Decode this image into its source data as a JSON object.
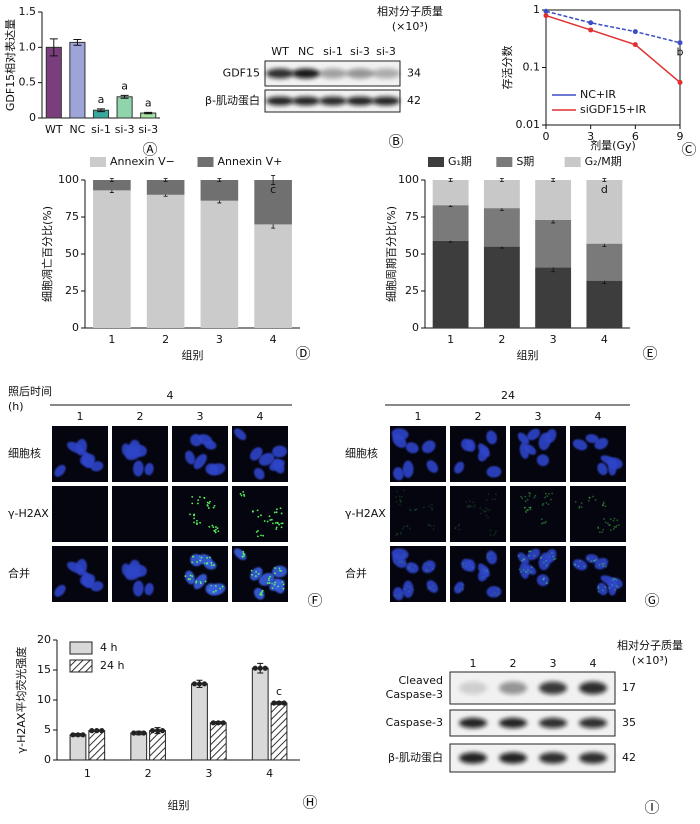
{
  "chart_data": [
    {
      "type": "bar",
      "panel_label": "Ⓐ",
      "y_label": "GDF15相对表达量",
      "categories": [
        "WT",
        "NC",
        "si-1",
        "si-3",
        "si-3"
      ],
      "values": [
        1.0,
        1.07,
        0.11,
        0.3,
        0.07
      ],
      "errors": [
        0.12,
        0.04,
        0.02,
        0.02,
        0.01
      ],
      "colors": [
        "#7a3e7d",
        "#9ea3d8",
        "#3aa79f",
        "#8fd4aa",
        "#a6e2a2"
      ],
      "ylim": [
        0,
        1.5
      ],
      "yticks": [
        0,
        0.5,
        {
          "value": 1,
          "label": "1.0"
        },
        1.5
      ],
      "annotations": [
        "a",
        "a",
        "a"
      ]
    },
    {
      "type": "line",
      "panel_label": "Ⓒ",
      "y_label": "存活分数",
      "x_label": "剂量(Gy)",
      "x": [
        0,
        3,
        6,
        9
      ],
      "series": [
        {
          "name": "NC+IR",
          "color": "#3b4fc4",
          "line_style": "dashed",
          "values": [
            0.95,
            0.6,
            0.42,
            0.27
          ]
        },
        {
          "name": "siGDF15+IR",
          "color": "#e03030",
          "line_style": "solid",
          "values": [
            0.8,
            0.45,
            0.25,
            0.055
          ]
        }
      ],
      "xlim": [
        0,
        9
      ],
      "xticks": [
        0,
        3,
        6,
        9
      ],
      "ylim": [
        0.01,
        1
      ],
      "yticks": [
        0.01,
        0.1,
        1
      ],
      "log_y": true,
      "legend": "lower right",
      "annotations": [
        "b"
      ]
    },
    {
      "type": "stacked_bar",
      "panel_label": "Ⓓ",
      "y_label": "细胞凋亡百分比(%)",
      "x_label": "组别",
      "categories": [
        "1",
        "2",
        "3",
        "4"
      ],
      "series": [
        {
          "name": "Annexin V−",
          "color": "#cbcbcb",
          "values": [
            93,
            90,
            86,
            70
          ],
          "errors": [
            1.5,
            1,
            1.5,
            2.5
          ]
        },
        {
          "name": "Annexin V+",
          "color": "#707070",
          "values": [
            7,
            10,
            14,
            30
          ],
          "errors": [
            1,
            1,
            1,
            3
          ]
        }
      ],
      "ylim": [
        0,
        100
      ],
      "yticks": [
        0,
        25,
        50,
        75,
        100
      ],
      "legend": "top",
      "annotations": [
        "c"
      ]
    },
    {
      "type": "stacked_bar",
      "panel_label": "Ⓔ",
      "y_label": "细胞周期百分比(%)",
      "x_label": "组别",
      "categories": [
        "1",
        "2",
        "3",
        "4"
      ],
      "series": [
        {
          "name": "G₁期",
          "color": "#3d3d3d",
          "values": [
            59,
            55,
            41,
            32
          ],
          "errors": [
            1,
            1,
            3,
            2
          ]
        },
        {
          "name": "S期",
          "color": "#7a7a7a",
          "values": [
            24,
            26,
            32,
            25
          ],
          "errors": [
            1,
            1.5,
            2,
            2
          ]
        },
        {
          "name": "G₂/M期",
          "color": "#c8c8c8",
          "values": [
            17,
            19,
            27,
            43
          ],
          "errors": [
            1,
            1,
            1,
            1
          ]
        }
      ],
      "ylim": [
        0,
        100
      ],
      "yticks": [
        0,
        25,
        50,
        75,
        100
      ],
      "legend": "top",
      "annotations": [
        "d"
      ]
    },
    {
      "type": "grouped_bar",
      "panel_label": "Ⓗ",
      "y_label": "γ-H2AX平均荧光强度",
      "x_label": "组别",
      "categories": [
        "1",
        "2",
        "3",
        "4"
      ],
      "series": [
        {
          "name": "4 h",
          "color": "#d9d9d9",
          "hatch": false,
          "values": [
            4.2,
            4.5,
            12.7,
            15.3
          ],
          "errors": [
            0.2,
            0.3,
            0.6,
            0.8
          ]
        },
        {
          "name": "24 h",
          "color": "#ffffff",
          "hatch": true,
          "values": [
            4.9,
            4.9,
            6.2,
            9.5
          ],
          "errors": [
            0.1,
            0.5,
            0.2,
            0.2
          ]
        }
      ],
      "ylim": [
        0,
        20
      ],
      "yticks": [
        0,
        5,
        10,
        15,
        20
      ],
      "legend": "upper left",
      "annotations": [
        "c"
      ]
    }
  ],
  "blot_b": {
    "panel_label": "Ⓑ",
    "header": "相对分子质量",
    "unit": "(×10³)",
    "lanes": [
      "WT",
      "NC",
      "si-1",
      "si-3",
      "si-3"
    ],
    "rows": [
      {
        "label": [
          "GDF15"
        ],
        "mw": 34
      },
      {
        "label": [
          "β-肌动蛋白"
        ],
        "mw": 42
      }
    ]
  },
  "blot_i": {
    "panel_label": "Ⓘ",
    "header": "相对分子质量",
    "unit": "(×10³)",
    "lanes": [
      1,
      2,
      3,
      4
    ],
    "rows": [
      {
        "label": [
          "Cleaved",
          "Caspase-3"
        ],
        "mw": 17
      },
      {
        "label": [
          "Caspase-3"
        ],
        "mw": 35
      },
      {
        "label": [
          "β-肌动蛋白"
        ],
        "mw": 42
      }
    ]
  },
  "micrographs": {
    "time_label": "照后时间",
    "time_unit": "(h)",
    "groups": [
      {
        "panel_label": "Ⓕ",
        "time": 4,
        "lanes": [
          1,
          2,
          3,
          4
        ],
        "rows": [
          "细胞核",
          "γ-H2AX",
          "合并"
        ]
      },
      {
        "panel_label": "Ⓖ",
        "time": 24,
        "lanes": [
          1,
          2,
          3,
          4
        ],
        "rows": [
          "细胞核",
          "γ-H2AX",
          "合并"
        ]
      }
    ]
  }
}
